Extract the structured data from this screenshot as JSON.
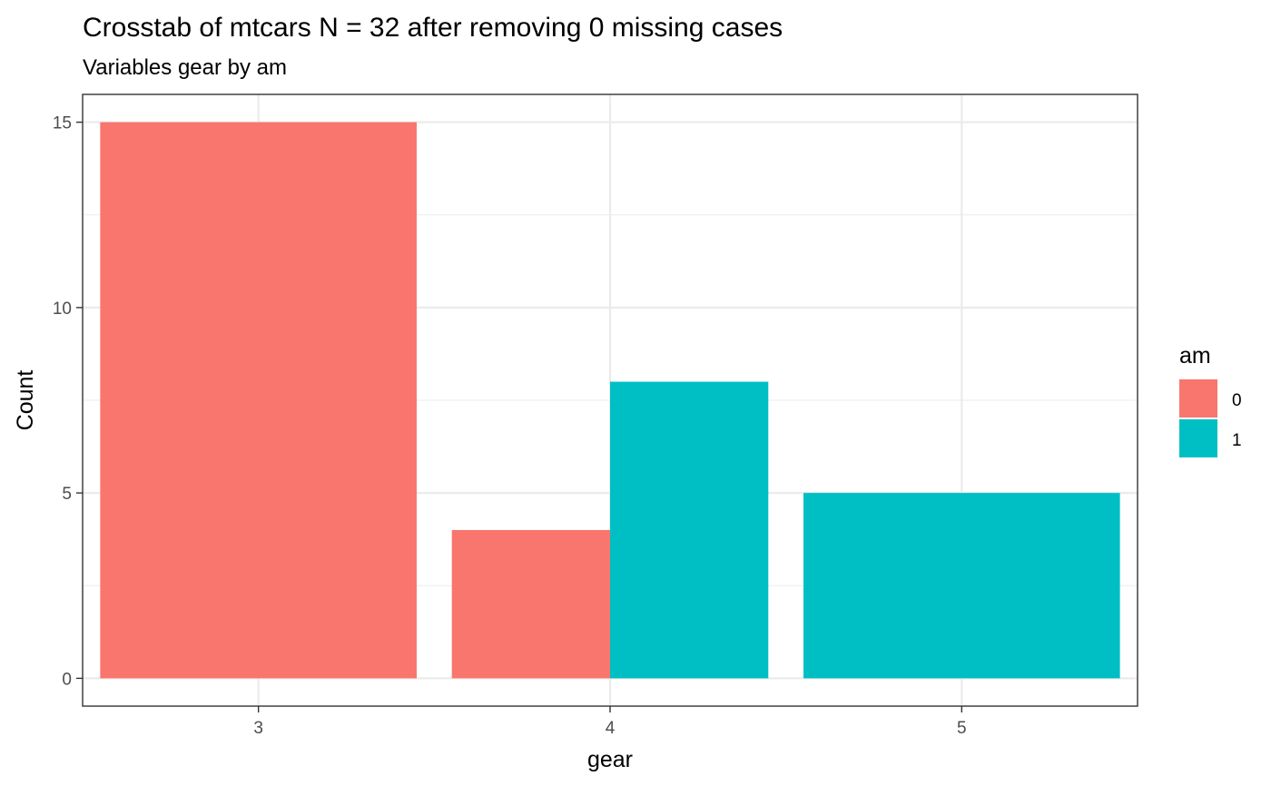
{
  "chart_data": {
    "type": "bar",
    "title": "Crosstab of mtcars N = 32 after removing 0 missing cases",
    "subtitle": "Variables gear by am",
    "xlabel": "gear",
    "ylabel": "Count",
    "categories": [
      "3",
      "4",
      "5"
    ],
    "series": [
      {
        "name": "0",
        "color": "#F8766D",
        "values": [
          15,
          4,
          0
        ]
      },
      {
        "name": "1",
        "color": "#00BFC4",
        "values": [
          0,
          8,
          5
        ]
      }
    ],
    "ylim": [
      -0.75,
      15.75
    ],
    "yticks": [
      "0",
      "5",
      "10",
      "15"
    ],
    "grid": true,
    "legend": {
      "title": "am",
      "position": "right"
    }
  }
}
